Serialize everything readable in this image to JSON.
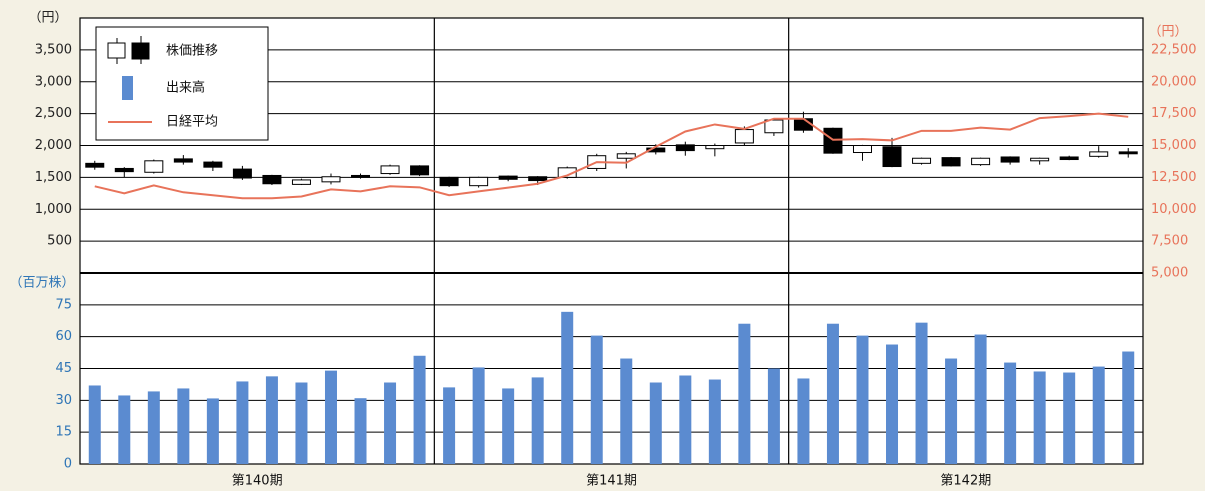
{
  "chart_data": [
    {
      "type": "candlestick",
      "y_unit": "（円）",
      "y2_unit": "（円）",
      "y2_color": "#e8735a",
      "ylim": [
        0,
        4000
      ],
      "yticks": [
        500,
        {
          "value": 1000,
          "label": "1,000"
        },
        {
          "value": 1500,
          "label": "1,500"
        },
        {
          "value": 2000,
          "label": "2,000"
        },
        {
          "value": 2500,
          "label": "2,500"
        },
        {
          "value": 3000,
          "label": "3,000"
        },
        {
          "value": 3500,
          "label": "3,500"
        }
      ],
      "y2lim": [
        5000,
        25000
      ],
      "y2ticks": [
        {
          "value": 5000,
          "label": "5,000"
        },
        {
          "value": 7500,
          "label": "7,500"
        },
        {
          "value": 10000,
          "label": "10,000"
        },
        {
          "value": 12500,
          "label": "12,500"
        },
        {
          "value": 15000,
          "label": "15,000"
        },
        {
          "value": 17500,
          "label": "17,500"
        },
        {
          "value": 20000,
          "label": "20,000"
        },
        {
          "value": 22500,
          "label": "22,500"
        }
      ],
      "grid": true,
      "legend": "top-left",
      "series": [
        {
          "name": "株価推移",
          "up_color": "#ffffff",
          "down_color": "#000000",
          "open": [
            1720,
            1640,
            1580,
            1790,
            1740,
            1630,
            1530,
            1390,
            1430,
            1530,
            1560,
            1680,
            1500,
            1370,
            1520,
            1510,
            1500,
            1640,
            1800,
            1960,
            2010,
            1950,
            2040,
            2200,
            2420,
            2270,
            1890,
            1980,
            1720,
            1810,
            1700,
            1820,
            1760,
            1820,
            1830,
            1900
          ],
          "high": [
            1760,
            1660,
            1780,
            1850,
            1760,
            1680,
            1540,
            1480,
            1560,
            1560,
            1700,
            1690,
            1510,
            1510,
            1530,
            1520,
            1670,
            1870,
            1900,
            2020,
            2060,
            2030,
            2300,
            2420,
            2530,
            2280,
            2010,
            2120,
            1810,
            1820,
            1810,
            1830,
            1810,
            1840,
            1990,
            1960
          ],
          "low": [
            1620,
            1500,
            1560,
            1700,
            1600,
            1460,
            1380,
            1380,
            1390,
            1480,
            1540,
            1520,
            1350,
            1340,
            1440,
            1380,
            1480,
            1600,
            1640,
            1860,
            1840,
            1830,
            2000,
            2150,
            2200,
            1870,
            1760,
            1660,
            1700,
            1670,
            1680,
            1700,
            1700,
            1770,
            1810,
            1810
          ],
          "close": [
            1660,
            1590,
            1760,
            1740,
            1660,
            1490,
            1400,
            1460,
            1510,
            1500,
            1680,
            1540,
            1370,
            1500,
            1470,
            1450,
            1650,
            1840,
            1870,
            1900,
            1920,
            2000,
            2250,
            2400,
            2240,
            1880,
            2000,
            1670,
            1800,
            1680,
            1800,
            1740,
            1800,
            1780,
            1900,
            1870
          ]
        },
        {
          "name": "日経平均",
          "type": "line",
          "axis": "y2",
          "color": "#e8735a",
          "values": [
            11800,
            11250,
            11870,
            11330,
            11100,
            10860,
            10860,
            11000,
            11560,
            11400,
            11800,
            11720,
            11100,
            11400,
            11700,
            12000,
            12650,
            13700,
            13650,
            14900,
            16100,
            16650,
            16300,
            17100,
            17100,
            15450,
            15500,
            15400,
            16150,
            16150,
            16400,
            16250,
            17150,
            17300,
            17500,
            17250
          ]
        }
      ]
    },
    {
      "type": "bar",
      "y_unit": "（百万株）",
      "y_color": "#2e75b6",
      "ylim": [
        0,
        90
      ],
      "yticks": [
        0,
        15,
        30,
        45,
        60,
        75
      ],
      "grid": true,
      "periods": [
        "第140期",
        "第141期",
        "第142期"
      ],
      "series": [
        {
          "name": "出来高",
          "color": "#5b8bd0",
          "values": [
            37,
            32.3,
            34.2,
            35.6,
            30.9,
            38.9,
            41.3,
            38.4,
            44,
            31,
            38.4,
            51,
            36.1,
            45.5,
            35.6,
            40.8,
            71.7,
            60.5,
            49.7,
            38.4,
            41.7,
            39.8,
            66.1,
            45,
            40.3,
            66.1,
            60.5,
            56.3,
            66.6,
            49.7,
            61,
            47.8,
            43.6,
            43.1,
            45.9,
            53
          ]
        }
      ]
    }
  ]
}
